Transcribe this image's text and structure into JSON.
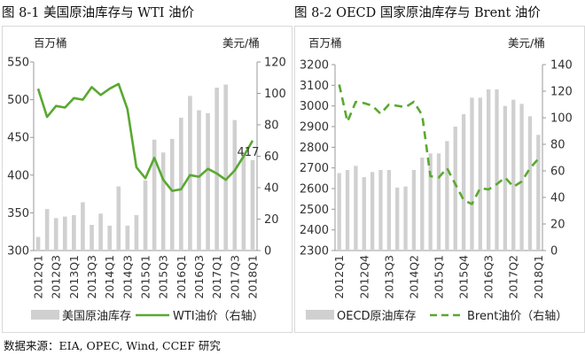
{
  "figure_titles": [
    "图 8-1 美国原油库存与 WTI 油价",
    "图 8-2 OECD 国家原油库存与 Brent 油价"
  ],
  "source": "数据来源：EIA, OPEC, Wind, CCEF 研究",
  "colors": {
    "bar": "#d0d0d0",
    "line": "#5aa832",
    "axis": "#999999"
  },
  "chart_data": [
    {
      "type": "bar+line",
      "title": "",
      "left_unit": "百万桶",
      "right_unit": "美元/桶",
      "x": [
        "2012Q1",
        "2012Q2",
        "2012Q3",
        "2012Q4",
        "2013Q1",
        "2013Q2",
        "2013Q3",
        "2013Q4",
        "2014Q1",
        "2014Q2",
        "2014Q3",
        "2014Q4",
        "2015Q1",
        "2015Q2",
        "2015Q3",
        "2015Q4",
        "2016Q1",
        "2016Q2",
        "2016Q3",
        "2016Q4",
        "2017Q1",
        "2017Q2",
        "2017Q3",
        "2017Q4",
        "2018Q1"
      ],
      "x_tick_labels": [
        "2012Q1",
        "2012Q3",
        "2013Q1",
        "2013Q3",
        "2014Q1",
        "2014Q3",
        "2015Q1",
        "2015Q3",
        "2016Q1",
        "2016Q3",
        "2017Q1",
        "2017Q3",
        "2018Q1"
      ],
      "ylim_left": [
        300,
        550
      ],
      "yticks_left": [
        300,
        350,
        400,
        450,
        500,
        550
      ],
      "ylim_right": [
        0,
        120
      ],
      "yticks_right": [
        0,
        20,
        40,
        60,
        80,
        100,
        120
      ],
      "series": [
        {
          "name": "美国原油库存",
          "axis": "left",
          "style": "bar",
          "values": [
            318,
            355,
            343,
            345,
            347,
            364,
            334,
            349,
            333,
            385,
            333,
            347,
            393,
            447,
            430,
            448,
            476,
            505,
            486,
            482,
            516,
            520,
            473,
            427,
            420
          ]
        },
        {
          "name": "WTI油价（右轴）",
          "axis": "right",
          "style": "solid-line",
          "values": [
            103,
            85,
            92,
            91,
            97,
            96,
            104,
            99,
            103,
            106,
            90,
            53,
            46,
            59,
            45,
            38,
            39,
            48,
            47,
            52,
            49,
            45,
            51,
            60,
            70
          ]
        }
      ],
      "annotation": "417"
    },
    {
      "type": "bar+line",
      "title": "",
      "left_unit": "百万桶",
      "right_unit": "美元/桶",
      "x": [
        "2012Q1",
        "2012Q2",
        "2012Q3",
        "2012Q4",
        "2013Q1",
        "2013Q2",
        "2013Q3",
        "2013Q4",
        "2014Q1",
        "2014Q2",
        "2014Q3",
        "2014Q4",
        "2015Q1",
        "2015Q2",
        "2015Q3",
        "2015Q4",
        "2016Q1",
        "2016Q2",
        "2016Q3",
        "2016Q4",
        "2017Q1",
        "2017Q2",
        "2017Q3",
        "2017Q4",
        "2018Q1"
      ],
      "x_tick_labels": [
        "2012Q1",
        "2012Q4",
        "2013Q3",
        "2014Q2",
        "2015Q1",
        "2015Q4",
        "2016Q3",
        "2017Q2",
        "2018Q1"
      ],
      "ylim_left": [
        2300,
        3200
      ],
      "yticks_left": [
        2300,
        2400,
        2500,
        2600,
        2700,
        2800,
        2900,
        3000,
        3100,
        3200
      ],
      "ylim_right": [
        0,
        140
      ],
      "yticks_right": [
        0,
        20,
        40,
        60,
        80,
        100,
        120,
        140
      ],
      "series": [
        {
          "name": "OECD原油库存",
          "axis": "left",
          "style": "bar",
          "values": [
            2675,
            2690,
            2710,
            2655,
            2680,
            2690,
            2690,
            2605,
            2610,
            2690,
            2750,
            2770,
            2770,
            2830,
            2900,
            2960,
            3040,
            3040,
            3080,
            3080,
            3000,
            3030,
            3010,
            2950,
            2860
          ]
        },
        {
          "name": "Brent油价（右轴）",
          "axis": "right",
          "style": "dashed-line",
          "values": [
            125,
            97,
            112,
            111,
            109,
            103,
            110,
            109,
            108,
            112,
            102,
            56,
            55,
            62,
            50,
            38,
            35,
            47,
            46,
            50,
            55,
            48,
            52,
            62,
            69
          ]
        }
      ]
    }
  ]
}
